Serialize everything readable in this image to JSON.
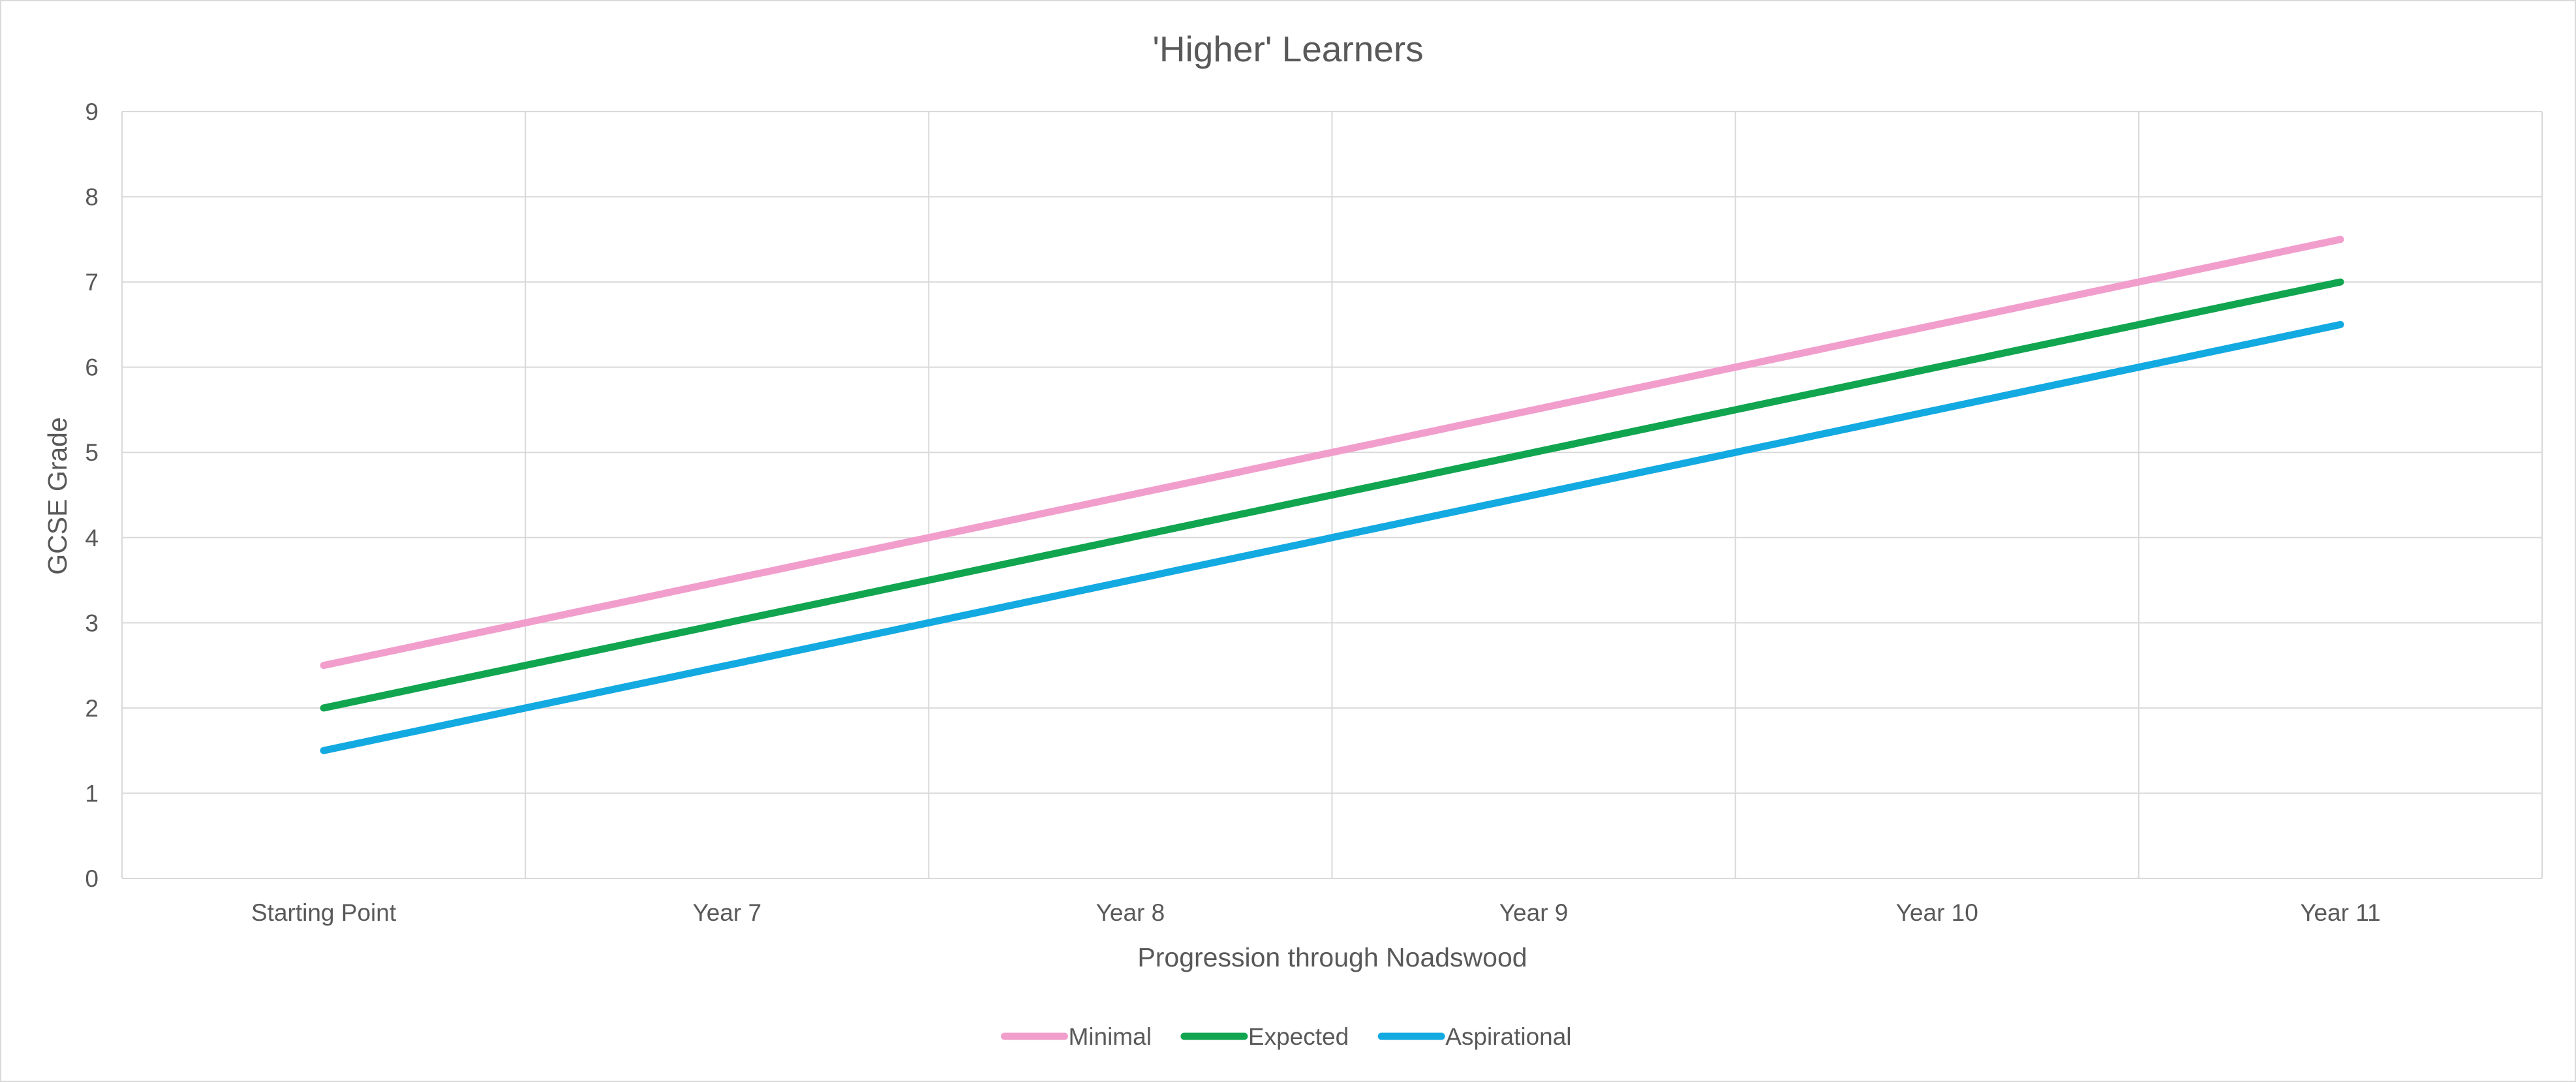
{
  "chart_data": {
    "type": "line",
    "title": "'Higher' Learners",
    "xlabel": "Progression through Noadswood",
    "ylabel": "GCSE Grade",
    "categories": [
      "Starting Point",
      "Year 7",
      "Year 8",
      "Year 9",
      "Year 10",
      "Year 11"
    ],
    "ylim": [
      0,
      9
    ],
    "yticks": [
      "0",
      "1",
      "2",
      "3",
      "4",
      "5",
      "6",
      "7",
      "8",
      "9"
    ],
    "grid": true,
    "legend_position": "bottom",
    "series": [
      {
        "name": "Minimal",
        "color": "#F19ECD",
        "values": [
          2.5,
          3.5,
          4.5,
          5.5,
          6.5,
          7.5
        ]
      },
      {
        "name": "Expected",
        "color": "#11A550",
        "values": [
          2.0,
          3.0,
          4.0,
          5.0,
          6.0,
          7.0
        ]
      },
      {
        "name": "Aspirational",
        "color": "#13A9E1",
        "values": [
          1.5,
          2.5,
          3.5,
          4.5,
          5.5,
          6.5
        ]
      }
    ]
  }
}
